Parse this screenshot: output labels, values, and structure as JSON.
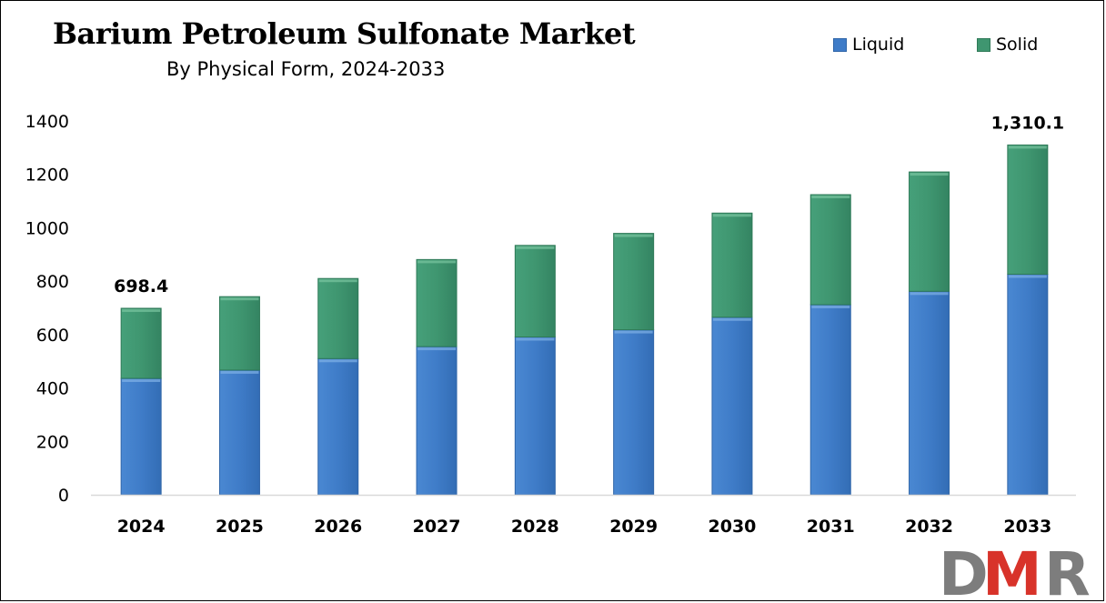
{
  "colors": {
    "liquid": "#3f7cc8",
    "liquid_dark": "#2f65a8",
    "solid": "#3f9670",
    "solid_dark": "#2f7a58",
    "logo_grey": "#7d7d7d",
    "logo_red": "#d8332a"
  },
  "logo": {
    "text": "DMR"
  },
  "chart_data": {
    "type": "bar",
    "stacked": true,
    "title": "Barium Petroleum Sulfonate Market",
    "subtitle": "By Physical Form, 2024-2033",
    "categories": [
      "2024",
      "2025",
      "2026",
      "2027",
      "2028",
      "2029",
      "2030",
      "2031",
      "2032",
      "2033"
    ],
    "series": [
      {
        "name": "Liquid",
        "values": [
          436,
          467,
          510,
          555,
          591,
          618,
          665,
          712,
          762,
          826
        ]
      },
      {
        "name": "Solid",
        "values": [
          262.4,
          275,
          300,
          326,
          343,
          361,
          390,
          412,
          447,
          484.1
        ]
      }
    ],
    "totals": [
      698.4,
      742,
      810,
      881,
      934,
      979,
      1055,
      1124,
      1209,
      1310.1
    ],
    "data_labels": [
      {
        "category": "2024",
        "text": "698.4"
      },
      {
        "category": "2033",
        "text": "1,310.1"
      }
    ],
    "ylim": [
      0,
      1400
    ],
    "yticks": [
      0,
      200,
      400,
      600,
      800,
      1000,
      1200,
      1400
    ],
    "grid": false,
    "legend_position": "top-right"
  }
}
